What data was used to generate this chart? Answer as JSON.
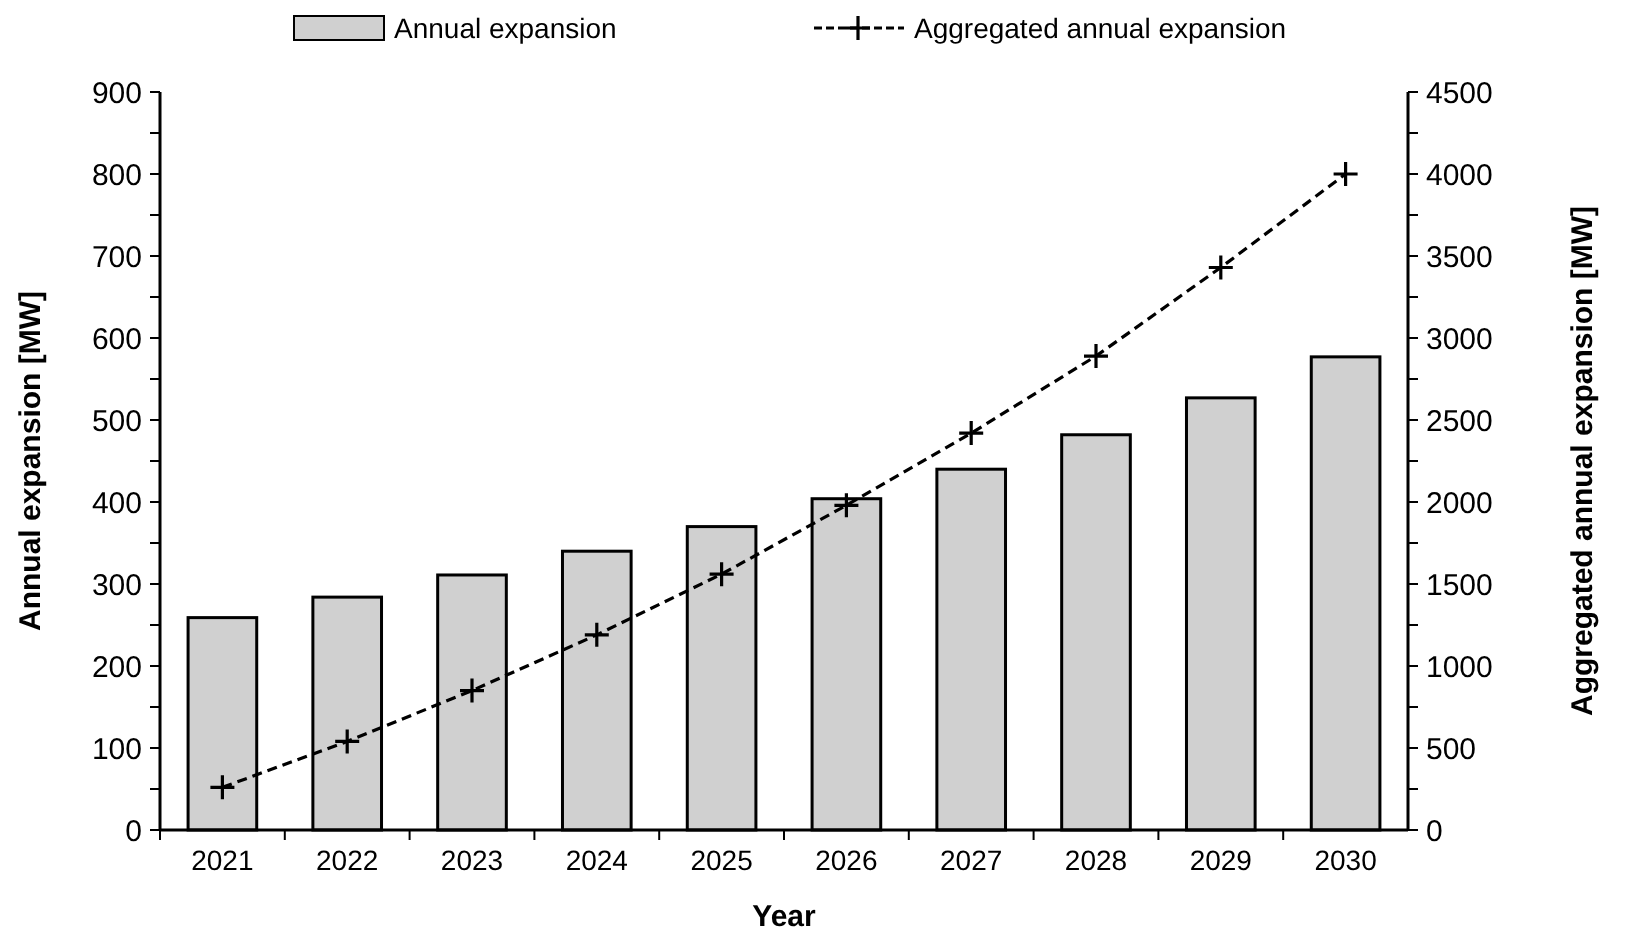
{
  "chart_data": {
    "type": "bar",
    "xlabel": "Year",
    "ylabel": "Annual expansion [MW]",
    "y2label": "Aggregated annual expansion [MW]",
    "categories": [
      "2021",
      "2022",
      "2023",
      "2024",
      "2025",
      "2026",
      "2027",
      "2028",
      "2029",
      "2030"
    ],
    "series": [
      {
        "name": "Annual expansion",
        "color": "#d0d0d0",
        "values": [
          259,
          284,
          311,
          340,
          370,
          404,
          440,
          482,
          527,
          577
        ]
      },
      {
        "name": "Aggregated annual expansion",
        "type": "line",
        "axis": "y2",
        "color": "#000000",
        "marker": "cross",
        "line_style": "dashed",
        "values": [
          260,
          540,
          850,
          1190,
          1560,
          1980,
          2420,
          2890,
          3430,
          4000
        ]
      }
    ],
    "ylim": [
      0,
      900
    ],
    "yticks": [
      0,
      {
        "value": 50,
        "label": null
      },
      100,
      {
        "value": 150,
        "label": null
      },
      200,
      {
        "value": 250,
        "label": null
      },
      300,
      {
        "value": 350,
        "label": null
      },
      400,
      {
        "value": 450,
        "label": null
      },
      500,
      {
        "value": 550,
        "label": null
      },
      600,
      {
        "value": 650,
        "label": null
      },
      700,
      {
        "value": 750,
        "label": null
      },
      800,
      {
        "value": 850,
        "label": null
      },
      900
    ],
    "y2lim": [
      0,
      4500
    ],
    "y2ticks": [
      0,
      {
        "value": 250,
        "label": null
      },
      500,
      {
        "value": 750,
        "label": null
      },
      1000,
      {
        "value": 1250,
        "label": null
      },
      1500,
      {
        "value": 1750,
        "label": null
      },
      2000,
      {
        "value": 2250,
        "label": null
      },
      2500,
      {
        "value": 2750,
        "label": null
      },
      3000,
      {
        "value": 3250,
        "label": null
      },
      3500,
      {
        "value": 3750,
        "label": null
      },
      4000,
      {
        "value": 4250,
        "label": null
      },
      4500
    ],
    "legend": "top",
    "grid": false
  }
}
